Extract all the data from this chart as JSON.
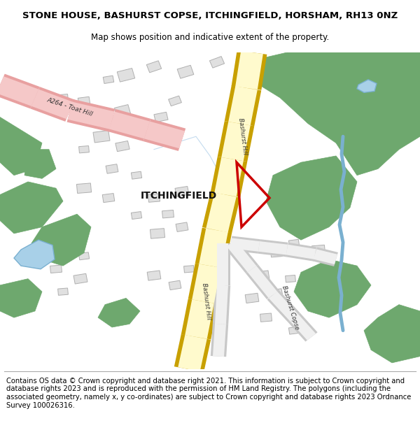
{
  "title": "STONE HOUSE, BASHURST COPSE, ITCHINGFIELD, HORSHAM, RH13 0NZ",
  "subtitle": "Map shows position and indicative extent of the property.",
  "footer": "Contains OS data © Crown copyright and database right 2021. This information is subject to Crown copyright and database rights 2023 and is reproduced with the permission of HM Land Registry. The polygons (including the associated geometry, namely x, y co-ordinates) are subject to Crown copyright and database rights 2023 Ordnance Survey 100026316.",
  "bg_color": "#ffffff",
  "map_bg": "#ffffff",
  "title_fontsize": 9.5,
  "subtitle_fontsize": 8.5,
  "footer_fontsize": 7.2,
  "green_color": "#6ea86e",
  "green_edge": "#6ea86e",
  "road_main_fill": "#fffacd",
  "road_main_border": "#c8a000",
  "road_pink_fill": "#f5c8c8",
  "road_pink_border": "#e8a0a0",
  "road_sec_fill": "#f0f0f0",
  "road_sec_border": "#c8c8c8",
  "water_fill": "#a8d0e8",
  "water_edge": "#7ab0d0",
  "river_color": "#7ab0d0",
  "plot_color": "#cc0000",
  "building_fill": "#e0e0e0",
  "building_edge": "#b0b0b0",
  "itchingfield_label": "ITCHINGFIELD",
  "road_label_upper": "Bashurst Hill",
  "road_label_lower": "Bashurst Hill",
  "road_label_copse": "Bashurst Copse",
  "road_label_a264": "A264 - Toat Hill"
}
